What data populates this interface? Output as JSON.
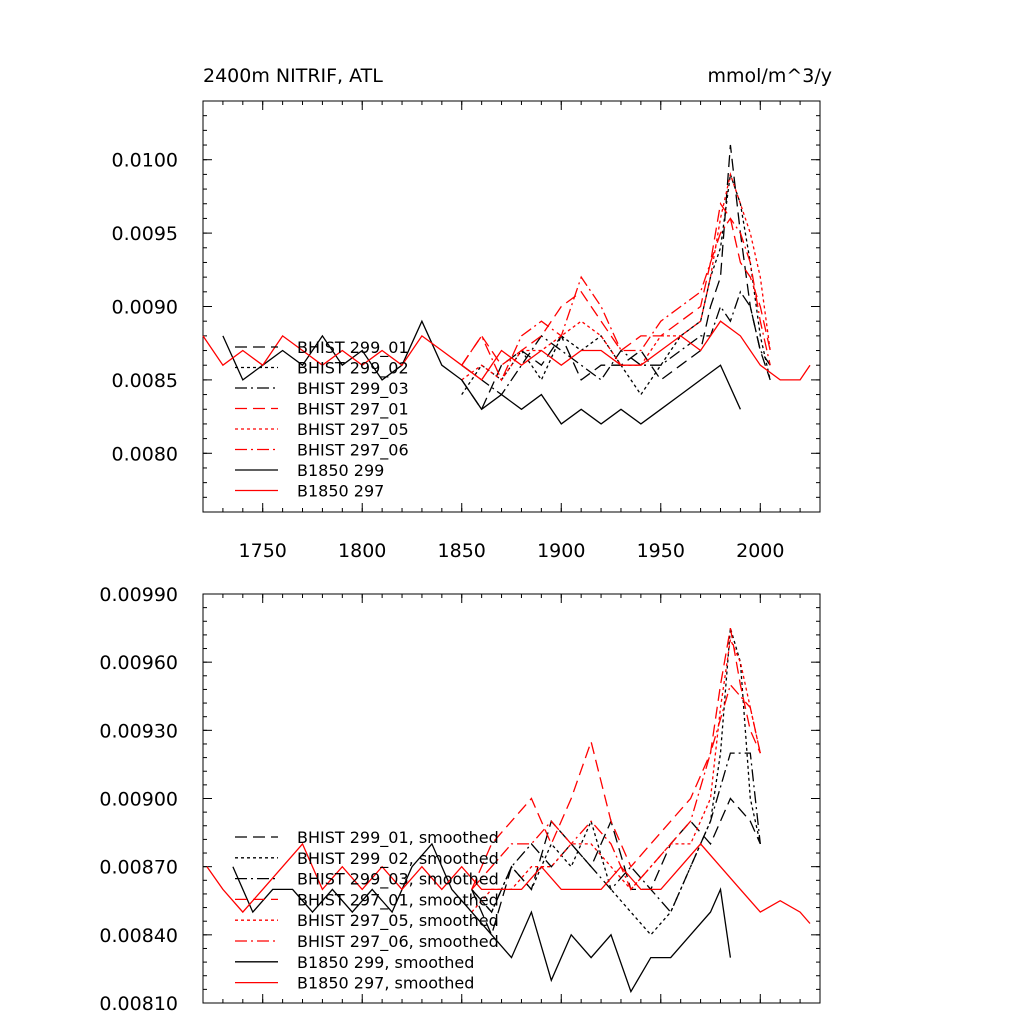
{
  "colors": {
    "black": "#000000",
    "red": "#ff0000"
  },
  "chart_data": [
    {
      "type": "line",
      "title": "2400m NITRIF, ATL",
      "units_label": "mmol/m^3/y",
      "xlim": [
        1720,
        2030
      ],
      "ylim": [
        0.0076,
        0.0104
      ],
      "x_ticks": [
        1750,
        1800,
        1850,
        1900,
        1950,
        2000
      ],
      "x_tick_labels": [
        "1750",
        "1800",
        "1850",
        "1900",
        "1950",
        "2000"
      ],
      "y_ticks": [
        0.008,
        0.0085,
        0.009,
        0.0095,
        0.01
      ],
      "y_tick_labels": [
        "0.0080",
        "0.0085",
        "0.0090",
        "0.0095",
        "0.0100"
      ],
      "legend_placement": "lower-left",
      "series": [
        {
          "name": "BHIST 299_01",
          "color": "black",
          "dash": "long-dash",
          "x": [
            1850,
            1860,
            1870,
            1880,
            1890,
            1900,
            1910,
            1920,
            1930,
            1940,
            1950,
            1960,
            1970,
            1975,
            1980,
            1985,
            1990,
            1995,
            2000,
            2005
          ],
          "y": [
            0.0085,
            0.0083,
            0.0086,
            0.0087,
            0.0086,
            0.0088,
            0.0085,
            0.0086,
            0.0086,
            0.0087,
            0.0085,
            0.0086,
            0.0087,
            0.009,
            0.0092,
            0.0101,
            0.0095,
            0.009,
            0.0087,
            0.0085
          ]
        },
        {
          "name": "BHIST 299_02",
          "color": "black",
          "dash": "short-dash",
          "x": [
            1850,
            1860,
            1870,
            1880,
            1890,
            1900,
            1910,
            1920,
            1930,
            1940,
            1950,
            1960,
            1970,
            1975,
            1980,
            1985,
            1990,
            1995,
            2000,
            2005
          ],
          "y": [
            0.0084,
            0.0086,
            0.0085,
            0.0087,
            0.0085,
            0.0088,
            0.0087,
            0.0088,
            0.0086,
            0.0084,
            0.0086,
            0.0088,
            0.0089,
            0.0092,
            0.0094,
            0.0099,
            0.0097,
            0.0093,
            0.0088,
            0.0085
          ]
        },
        {
          "name": "BHIST 299_03",
          "color": "black",
          "dash": "dash-dot",
          "x": [
            1850,
            1860,
            1870,
            1880,
            1890,
            1900,
            1910,
            1920,
            1930,
            1940,
            1950,
            1960,
            1970,
            1975,
            1980,
            1985,
            1990,
            1995,
            2000,
            2005
          ],
          "y": [
            0.0086,
            0.0085,
            0.0084,
            0.0086,
            0.0088,
            0.0087,
            0.0086,
            0.0085,
            0.0087,
            0.0086,
            0.0086,
            0.0087,
            0.0088,
            0.0088,
            0.009,
            0.0089,
            0.0091,
            0.009,
            0.0087,
            0.0086
          ]
        },
        {
          "name": "BHIST 297_01",
          "color": "red",
          "dash": "long-dash",
          "x": [
            1850,
            1860,
            1870,
            1880,
            1890,
            1900,
            1910,
            1920,
            1930,
            1940,
            1950,
            1960,
            1970,
            1975,
            1980,
            1985,
            1990,
            1995,
            2000,
            2005
          ],
          "y": [
            0.0086,
            0.0088,
            0.0086,
            0.0087,
            0.0088,
            0.009,
            0.0091,
            0.0089,
            0.0087,
            0.0088,
            0.0088,
            0.0089,
            0.009,
            0.0093,
            0.0097,
            0.0096,
            0.0093,
            0.0092,
            0.009,
            0.0087
          ]
        },
        {
          "name": "BHIST 297_05",
          "color": "red",
          "dash": "short-dash",
          "x": [
            1850,
            1860,
            1870,
            1880,
            1890,
            1900,
            1910,
            1920,
            1930,
            1940,
            1950,
            1960,
            1970,
            1975,
            1980,
            1985,
            1990,
            1995,
            2000,
            2005
          ],
          "y": [
            0.0085,
            0.0086,
            0.0085,
            0.0087,
            0.0087,
            0.0088,
            0.0089,
            0.0088,
            0.0086,
            0.0086,
            0.0088,
            0.0088,
            0.0089,
            0.0092,
            0.0096,
            0.0099,
            0.0097,
            0.0095,
            0.0092,
            0.0087
          ]
        },
        {
          "name": "BHIST 297_06",
          "color": "red",
          "dash": "dash-dot",
          "x": [
            1850,
            1860,
            1870,
            1880,
            1890,
            1900,
            1910,
            1920,
            1930,
            1940,
            1950,
            1960,
            1970,
            1975,
            1980,
            1985,
            1990,
            1995,
            2000,
            2005
          ],
          "y": [
            0.0086,
            0.0088,
            0.0085,
            0.0088,
            0.0089,
            0.0088,
            0.0092,
            0.009,
            0.0087,
            0.0087,
            0.0089,
            0.009,
            0.0091,
            0.0093,
            0.0095,
            0.0096,
            0.0095,
            0.0093,
            0.0089,
            0.0086
          ]
        },
        {
          "name": "B1850 299",
          "color": "black",
          "dash": "solid",
          "x": [
            1730,
            1740,
            1750,
            1760,
            1770,
            1780,
            1790,
            1800,
            1810,
            1820,
            1830,
            1840,
            1850,
            1860,
            1870,
            1880,
            1890,
            1900,
            1910,
            1920,
            1930,
            1940,
            1950,
            1960,
            1970,
            1980,
            1990
          ],
          "y": [
            0.0088,
            0.0085,
            0.0086,
            0.0087,
            0.0086,
            0.0088,
            0.0086,
            0.0087,
            0.0085,
            0.0086,
            0.0089,
            0.0086,
            0.0085,
            0.0083,
            0.0084,
            0.0083,
            0.0084,
            0.0082,
            0.0083,
            0.0082,
            0.0083,
            0.0082,
            0.0083,
            0.0084,
            0.0085,
            0.0086,
            0.0083
          ]
        },
        {
          "name": "B1850 297",
          "color": "red",
          "dash": "solid",
          "x": [
            1720,
            1730,
            1740,
            1750,
            1760,
            1770,
            1780,
            1790,
            1800,
            1810,
            1820,
            1830,
            1840,
            1850,
            1860,
            1870,
            1880,
            1890,
            1900,
            1910,
            1920,
            1930,
            1940,
            1950,
            1960,
            1970,
            1980,
            1990,
            2000,
            2010,
            2020,
            2025
          ],
          "y": [
            0.0088,
            0.0086,
            0.0087,
            0.0086,
            0.0088,
            0.0087,
            0.0086,
            0.0087,
            0.0086,
            0.0087,
            0.0086,
            0.0088,
            0.0087,
            0.0086,
            0.0085,
            0.0087,
            0.0086,
            0.0087,
            0.0086,
            0.0087,
            0.0087,
            0.0086,
            0.0086,
            0.0087,
            0.0088,
            0.0087,
            0.0089,
            0.0088,
            0.0086,
            0.0085,
            0.0085,
            0.0086
          ]
        }
      ]
    },
    {
      "type": "line",
      "title": "",
      "xlim": [
        1720,
        2030
      ],
      "ylim": [
        0.0081,
        0.0099
      ],
      "x_ticks": [
        1750,
        1800,
        1850,
        1900,
        1950,
        2000
      ],
      "y_ticks": [
        0.0081,
        0.0084,
        0.0087,
        0.009,
        0.0093,
        0.0096,
        0.0099
      ],
      "y_tick_labels": [
        "0.00810",
        "0.00840",
        "0.00870",
        "0.00900",
        "0.00930",
        "0.00960",
        "0.00990"
      ],
      "legend_placement": "lower-left",
      "series": [
        {
          "name": "BHIST 299_01, smoothed",
          "color": "black",
          "dash": "long-dash",
          "x": [
            1855,
            1865,
            1875,
            1885,
            1895,
            1905,
            1915,
            1925,
            1935,
            1945,
            1955,
            1965,
            1975,
            1985,
            1995,
            2000
          ],
          "y": [
            0.0086,
            0.0084,
            0.0087,
            0.0086,
            0.0089,
            0.0088,
            0.0087,
            0.0089,
            0.0086,
            0.0086,
            0.0088,
            0.0089,
            0.0088,
            0.009,
            0.0089,
            0.0088
          ]
        },
        {
          "name": "BHIST 299_02, smoothed",
          "color": "black",
          "dash": "short-dash",
          "x": [
            1855,
            1865,
            1875,
            1885,
            1895,
            1905,
            1915,
            1925,
            1935,
            1945,
            1955,
            1965,
            1975,
            1980,
            1985,
            1990,
            1995,
            2000
          ],
          "y": [
            0.0086,
            0.0085,
            0.0087,
            0.0086,
            0.0088,
            0.0087,
            0.0089,
            0.0086,
            0.0085,
            0.0084,
            0.0085,
            0.0087,
            0.0089,
            0.0092,
            0.00975,
            0.0096,
            0.009,
            0.0088
          ]
        },
        {
          "name": "BHIST 299_03, smoothed",
          "color": "black",
          "dash": "dash-dot",
          "x": [
            1855,
            1865,
            1875,
            1885,
            1895,
            1905,
            1915,
            1925,
            1935,
            1945,
            1955,
            1965,
            1975,
            1985,
            1995,
            2000
          ],
          "y": [
            0.0086,
            0.0085,
            0.0087,
            0.0088,
            0.0087,
            0.0088,
            0.0087,
            0.0086,
            0.0087,
            0.0086,
            0.0085,
            0.0087,
            0.0089,
            0.0092,
            0.0092,
            0.0088
          ]
        },
        {
          "name": "BHIST 297_01, smoothed",
          "color": "red",
          "dash": "long-dash",
          "x": [
            1855,
            1865,
            1875,
            1885,
            1895,
            1905,
            1915,
            1925,
            1935,
            1945,
            1955,
            1965,
            1975,
            1980,
            1985,
            1990,
            1995,
            2000
          ],
          "y": [
            0.0086,
            0.0088,
            0.0089,
            0.009,
            0.0088,
            0.009,
            0.00925,
            0.0089,
            0.0087,
            0.0088,
            0.0089,
            0.009,
            0.0092,
            0.0095,
            0.00975,
            0.0095,
            0.0093,
            0.0092
          ]
        },
        {
          "name": "BHIST 297_05, smoothed",
          "color": "red",
          "dash": "short-dash",
          "x": [
            1855,
            1865,
            1875,
            1885,
            1895,
            1905,
            1915,
            1925,
            1935,
            1945,
            1955,
            1965,
            1975,
            1980,
            1985,
            1990,
            1995,
            2000
          ],
          "y": [
            0.0085,
            0.0086,
            0.0086,
            0.0087,
            0.0087,
            0.0088,
            0.0088,
            0.0087,
            0.0086,
            0.0087,
            0.0088,
            0.0088,
            0.009,
            0.0094,
            0.0097,
            0.0096,
            0.0094,
            0.0092
          ]
        },
        {
          "name": "BHIST 297_06, smoothed",
          "color": "red",
          "dash": "dash-dot",
          "x": [
            1855,
            1865,
            1875,
            1885,
            1895,
            1905,
            1915,
            1925,
            1935,
            1945,
            1955,
            1965,
            1975,
            1985,
            1995,
            2000
          ],
          "y": [
            0.0086,
            0.0087,
            0.0088,
            0.0088,
            0.0089,
            0.0088,
            0.0089,
            0.0088,
            0.0086,
            0.0087,
            0.0088,
            0.0089,
            0.0092,
            0.0095,
            0.0094,
            0.0092
          ]
        },
        {
          "name": "B1850 299, smoothed",
          "color": "black",
          "dash": "solid",
          "x": [
            1735,
            1745,
            1755,
            1765,
            1775,
            1785,
            1795,
            1805,
            1815,
            1825,
            1835,
            1845,
            1855,
            1865,
            1875,
            1885,
            1895,
            1905,
            1915,
            1925,
            1935,
            1945,
            1955,
            1965,
            1975,
            1980,
            1985
          ],
          "y": [
            0.0087,
            0.0085,
            0.0086,
            0.0086,
            0.0085,
            0.0086,
            0.0085,
            0.0086,
            0.0085,
            0.0087,
            0.0088,
            0.0086,
            0.0085,
            0.0084,
            0.0083,
            0.0085,
            0.0082,
            0.0084,
            0.0083,
            0.0084,
            0.00815,
            0.0083,
            0.0083,
            0.0084,
            0.0085,
            0.0086,
            0.0083
          ]
        },
        {
          "name": "B1850 297, smoothed",
          "color": "red",
          "dash": "solid",
          "x": [
            1722,
            1730,
            1740,
            1750,
            1760,
            1770,
            1780,
            1790,
            1800,
            1810,
            1820,
            1830,
            1840,
            1850,
            1860,
            1870,
            1880,
            1890,
            1900,
            1910,
            1920,
            1930,
            1940,
            1950,
            1960,
            1970,
            1980,
            1990,
            2000,
            2010,
            2020,
            2025
          ],
          "y": [
            0.0087,
            0.0086,
            0.0085,
            0.0086,
            0.0087,
            0.0088,
            0.0086,
            0.0087,
            0.0086,
            0.0087,
            0.0086,
            0.0087,
            0.0086,
            0.0087,
            0.0086,
            0.0086,
            0.0086,
            0.0087,
            0.0086,
            0.0086,
            0.0086,
            0.0087,
            0.0086,
            0.0086,
            0.0087,
            0.0088,
            0.0087,
            0.0086,
            0.0085,
            0.00855,
            0.0085,
            0.00845
          ]
        }
      ]
    }
  ]
}
